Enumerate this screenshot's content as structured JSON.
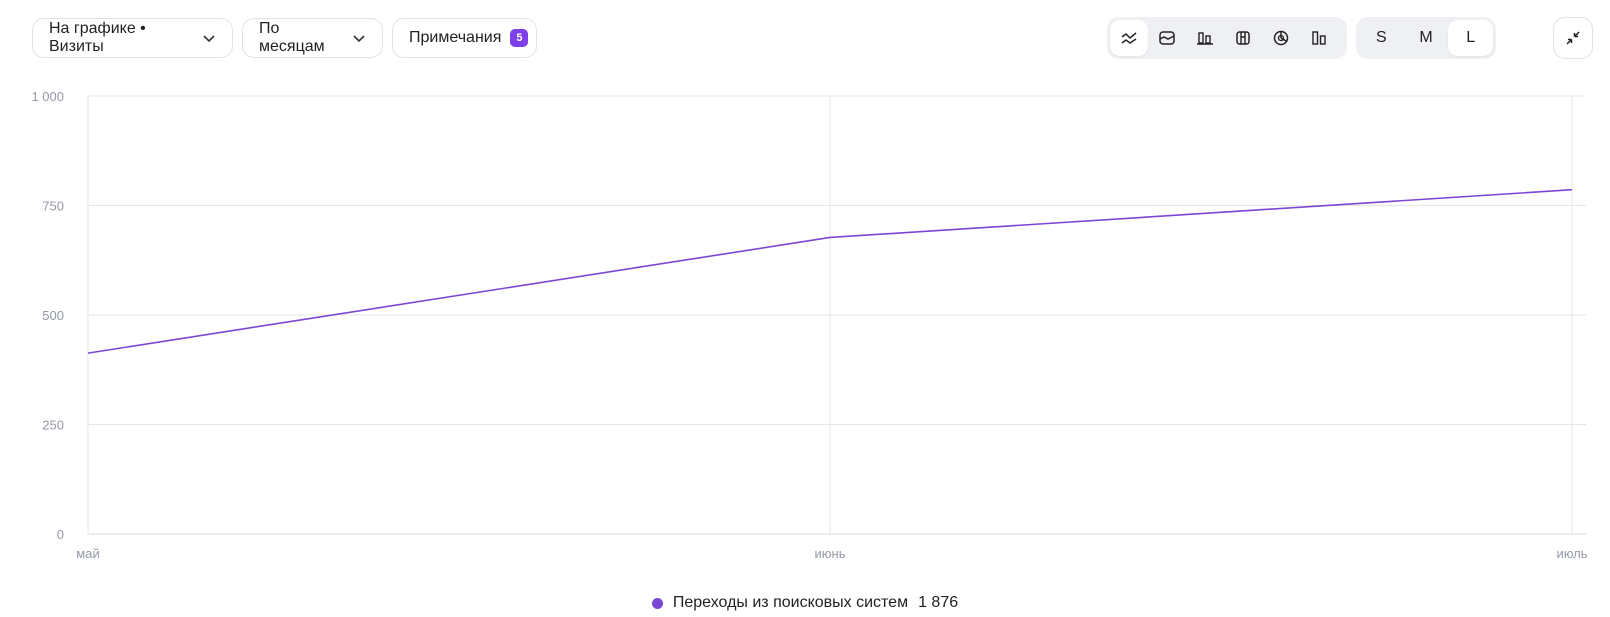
{
  "toolbar": {
    "metric_dropdown": "На графике • Визиты",
    "period_dropdown": "По месяцам",
    "notes_label": "Примечания",
    "notes_count": "5",
    "chart_types": [
      "line-chart-icon",
      "area-chart-icon",
      "bar-chart-icon",
      "stacked-columns-icon",
      "pie-chart-icon",
      "column-chart-icon"
    ],
    "active_chart_type": "line-chart-icon",
    "sizes": [
      "S",
      "M",
      "L"
    ],
    "active_size": "L",
    "fullscreen_icon": "collapse-icon"
  },
  "colors": {
    "accent": "#7e3ee8",
    "series": "#7b46d6",
    "grid": "#e6e6e6",
    "axis_text": "#9499a6"
  },
  "chart_data": {
    "type": "line",
    "categories": [
      "май",
      "июнь",
      "июль"
    ],
    "series": [
      {
        "name": "Переходы из поисковых систем",
        "values": [
          413,
          677,
          786
        ],
        "total": "1 876"
      }
    ],
    "ylim": [
      0,
      1000
    ],
    "yticks": [
      0,
      250,
      500,
      750,
      1000
    ],
    "ytick_labels": [
      "0",
      "250",
      "500",
      "750",
      "1 000"
    ],
    "grid": true,
    "legend_position": "bottom-center"
  }
}
